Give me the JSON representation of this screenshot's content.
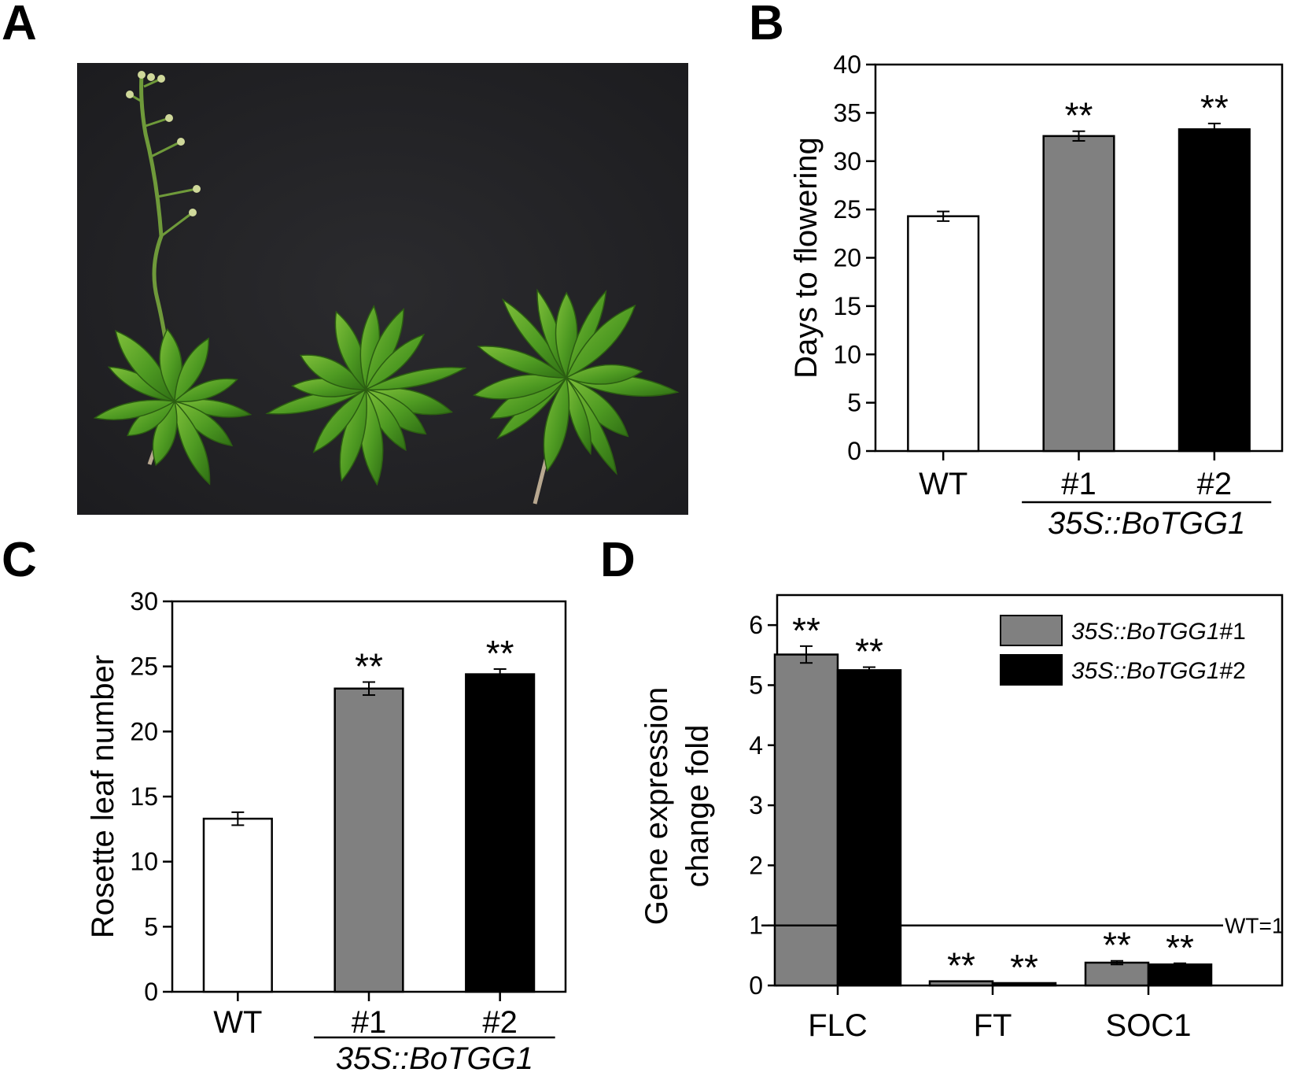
{
  "panels": {
    "a": {
      "letter": "A"
    },
    "b": {
      "letter": "B"
    },
    "c": {
      "letter": "C"
    },
    "d": {
      "letter": "D"
    }
  },
  "chart_data": [
    {
      "id": "b",
      "type": "bar",
      "ylabel": "Days to flowering",
      "ylim": [
        0,
        40
      ],
      "yticks": [
        0,
        5,
        10,
        15,
        20,
        25,
        30,
        35,
        40
      ],
      "categories": [
        "WT",
        "#1",
        "#2"
      ],
      "values": [
        24.3,
        32.6,
        33.3
      ],
      "errors": [
        0.5,
        0.5,
        0.6
      ],
      "colors": [
        "#ffffff",
        "#808080",
        "#000000"
      ],
      "significance": [
        "",
        "**",
        "**"
      ],
      "group_label": "35S::BoTGG1",
      "group_members": [
        "#1",
        "#2"
      ],
      "grid": false
    },
    {
      "id": "c",
      "type": "bar",
      "ylabel": "Rosette leaf number",
      "ylim": [
        0,
        30
      ],
      "yticks": [
        0,
        5,
        10,
        15,
        20,
        25,
        30
      ],
      "categories": [
        "WT",
        "#1",
        "#2"
      ],
      "values": [
        13.3,
        23.3,
        24.4
      ],
      "errors": [
        0.5,
        0.5,
        0.4
      ],
      "colors": [
        "#ffffff",
        "#808080",
        "#000000"
      ],
      "significance": [
        "",
        "**",
        "**"
      ],
      "group_label": "35S::BoTGG1",
      "group_members": [
        "#1",
        "#2"
      ],
      "grid": false
    },
    {
      "id": "d",
      "type": "bar",
      "ylabel_lines": [
        "Gene expression",
        "change fold"
      ],
      "ylim": [
        0,
        6.5
      ],
      "yticks": [
        0,
        1,
        2,
        3,
        4,
        5,
        6
      ],
      "categories": [
        "FLC",
        "FT",
        "SOC1"
      ],
      "series": [
        {
          "name": "35S::BoTGG1#1",
          "name_italic": "35S::BoTGG1",
          "name_plain": "#1",
          "color": "#808080",
          "values": [
            5.51,
            0.07,
            0.38
          ],
          "errors": [
            0.14,
            0.0,
            0.03
          ],
          "significance": [
            "**",
            "**",
            "**"
          ]
        },
        {
          "name": "35S::BoTGG1#2",
          "name_italic": "35S::BoTGG1",
          "name_plain": "#2",
          "color": "#000000",
          "values": [
            5.25,
            0.04,
            0.35
          ],
          "errors": [
            0.05,
            0.0,
            0.02
          ],
          "significance": [
            "**",
            "**",
            "**"
          ]
        }
      ],
      "reference": {
        "value": 1,
        "label": "WT=1"
      },
      "legend_position": "top-right",
      "grid": false
    }
  ]
}
